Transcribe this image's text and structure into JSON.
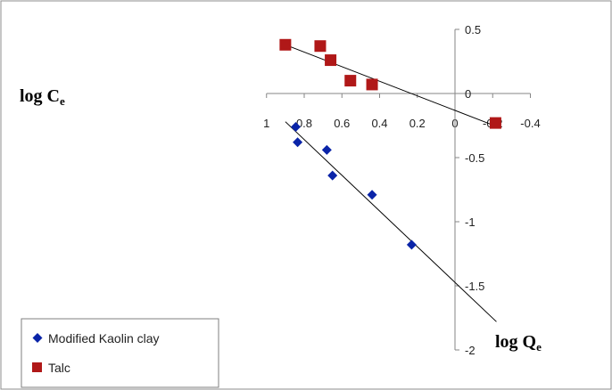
{
  "chart_data": {
    "type": "scatter",
    "xlabel": "log C",
    "xlabel_sub": "e",
    "ylabel": "log Q",
    "ylabel_sub": "e",
    "xlim": [
      1,
      -0.4
    ],
    "ylim": [
      -2,
      0.5
    ],
    "x_reversed": true,
    "x_ticks": [
      1,
      0.8,
      0.6,
      0.4,
      0.2,
      0,
      -0.2,
      -0.4
    ],
    "x_tick_labels": [
      "1",
      "0.8",
      "0.6",
      "0.4",
      "0.2",
      "0",
      "-0.2",
      "-0.4"
    ],
    "y_ticks": [
      0.5,
      0,
      -0.5,
      -1,
      -1.5,
      -2
    ],
    "y_tick_labels": [
      "0.5",
      "0",
      "-0.5",
      "-1",
      "-1.5",
      "-2"
    ],
    "grid": false,
    "legend_position": "bottom-left",
    "series": [
      {
        "name": "Modified Kaolin clay",
        "marker": "diamond",
        "color": "#0a24a8",
        "x": [
          0.845,
          0.835,
          0.68,
          0.65,
          0.44,
          0.23
        ],
        "y": [
          -0.26,
          -0.38,
          -0.44,
          -0.64,
          -0.79,
          -1.18
        ],
        "trendline": {
          "x": [
            0.9,
            -0.22
          ],
          "y": [
            -0.22,
            -1.78
          ]
        }
      },
      {
        "name": "Talc",
        "marker": "square",
        "color": "#b01818",
        "x": [
          0.9,
          0.715,
          0.66,
          0.555,
          0.44,
          -0.215
        ],
        "y": [
          0.38,
          0.37,
          0.26,
          0.1,
          0.07,
          -0.23
        ],
        "trendline": {
          "x": [
            0.9,
            -0.19
          ],
          "y": [
            0.38,
            -0.24
          ]
        }
      }
    ]
  }
}
